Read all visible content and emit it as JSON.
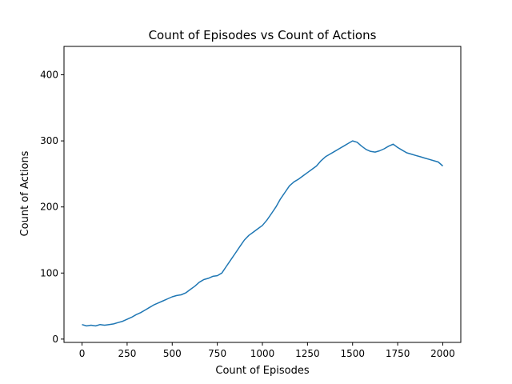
{
  "chart_data": {
    "type": "line",
    "title": "Count of Episodes vs Count of Actions",
    "xlabel": "Count of Episodes",
    "ylabel": "Count of Actions",
    "xlim": [
      -100,
      2100
    ],
    "ylim": [
      -5,
      443
    ],
    "xticks": [
      0,
      250,
      500,
      750,
      1000,
      1250,
      1500,
      1750,
      2000
    ],
    "yticks": [
      0,
      100,
      200,
      300,
      400
    ],
    "grid": false,
    "legend": "none",
    "series": [
      {
        "color": "#1f77b4",
        "x": [
          0,
          25,
          50,
          75,
          100,
          125,
          150,
          175,
          200,
          225,
          250,
          275,
          300,
          325,
          350,
          375,
          400,
          425,
          450,
          475,
          500,
          525,
          550,
          575,
          600,
          625,
          650,
          675,
          700,
          725,
          750,
          775,
          800,
          825,
          850,
          875,
          900,
          925,
          950,
          975,
          1000,
          1025,
          1050,
          1075,
          1100,
          1125,
          1150,
          1175,
          1200,
          1225,
          1250,
          1275,
          1300,
          1325,
          1350,
          1375,
          1400,
          1425,
          1450,
          1475,
          1500,
          1525,
          1550,
          1575,
          1600,
          1625,
          1650,
          1675,
          1700,
          1725,
          1750,
          1775,
          1800,
          1825,
          1850,
          1875,
          1900,
          1925,
          1950,
          1975,
          2000
        ],
        "y": [
          22,
          20,
          21,
          20,
          22,
          21,
          22,
          23,
          25,
          27,
          30,
          33,
          37,
          40,
          44,
          48,
          52,
          55,
          58,
          61,
          64,
          66,
          67,
          70,
          75,
          80,
          86,
          90,
          92,
          95,
          96,
          100,
          110,
          120,
          130,
          140,
          150,
          157,
          162,
          167,
          172,
          180,
          190,
          200,
          212,
          222,
          232,
          238,
          242,
          247,
          252,
          257,
          262,
          270,
          276,
          280,
          284,
          288,
          292,
          296,
          300,
          298,
          292,
          287,
          284,
          283,
          285,
          288,
          292,
          295,
          290,
          286,
          282,
          280,
          278,
          276,
          274,
          272,
          270,
          268,
          262
        ]
      }
    ]
  }
}
